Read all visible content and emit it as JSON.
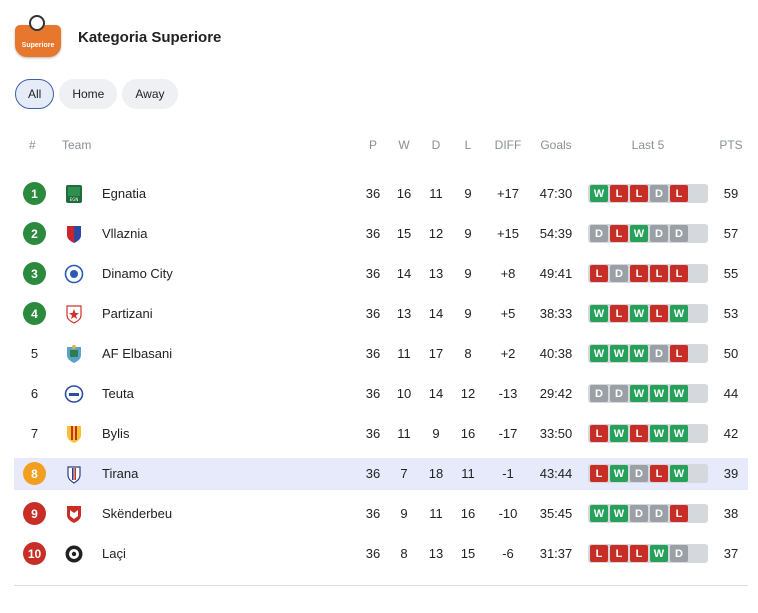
{
  "app": {
    "title": "Kategoria Superiore",
    "logo_text": "Superiore"
  },
  "filters": [
    {
      "label": "All",
      "active": true
    },
    {
      "label": "Home",
      "active": false
    },
    {
      "label": "Away",
      "active": false
    }
  ],
  "columns": {
    "rank": "#",
    "team": "Team",
    "played": "P",
    "won": "W",
    "drawn": "D",
    "lost": "L",
    "diff": "DIFF",
    "goals": "Goals",
    "last5": "Last 5",
    "pts": "PTS"
  },
  "colors": {
    "W": "#27a05a",
    "D": "#9aa0a6",
    "L": "#c62e26",
    "green": "#2b8a3e",
    "orange": "#f29e1f",
    "red": "#c62e26",
    "highlight": "#e6eafb"
  },
  "rows": [
    {
      "rank": "1",
      "rank_style": "green",
      "team": "Egnatia",
      "crest": "egnatia-crest",
      "p": "36",
      "w": "16",
      "d": "11",
      "l": "9",
      "diff": "+17",
      "goals": "47:30",
      "last5": [
        "W",
        "L",
        "L",
        "D",
        "L"
      ],
      "pts": "59"
    },
    {
      "rank": "2",
      "rank_style": "green",
      "team": "Vllaznia",
      "crest": "vllaznia-crest",
      "p": "36",
      "w": "15",
      "d": "12",
      "l": "9",
      "diff": "+15",
      "goals": "54:39",
      "last5": [
        "D",
        "L",
        "W",
        "D",
        "D"
      ],
      "pts": "57"
    },
    {
      "rank": "3",
      "rank_style": "green",
      "team": "Dinamo City",
      "crest": "dinamo-city-crest",
      "p": "36",
      "w": "14",
      "d": "13",
      "l": "9",
      "diff": "+8",
      "goals": "49:41",
      "last5": [
        "L",
        "D",
        "L",
        "L",
        "L"
      ],
      "pts": "55"
    },
    {
      "rank": "4",
      "rank_style": "green",
      "team": "Partizani",
      "crest": "partizani-crest",
      "p": "36",
      "w": "13",
      "d": "14",
      "l": "9",
      "diff": "+5",
      "goals": "38:33",
      "last5": [
        "W",
        "L",
        "W",
        "L",
        "W"
      ],
      "pts": "53"
    },
    {
      "rank": "5",
      "rank_style": "plain",
      "team": "AF Elbasani",
      "crest": "af-elbasani-crest",
      "p": "36",
      "w": "11",
      "d": "17",
      "l": "8",
      "diff": "+2",
      "goals": "40:38",
      "last5": [
        "W",
        "W",
        "W",
        "D",
        "L"
      ],
      "pts": "50"
    },
    {
      "rank": "6",
      "rank_style": "plain",
      "team": "Teuta",
      "crest": "teuta-crest",
      "p": "36",
      "w": "10",
      "d": "14",
      "l": "12",
      "diff": "-13",
      "goals": "29:42",
      "last5": [
        "D",
        "D",
        "W",
        "W",
        "W"
      ],
      "pts": "44"
    },
    {
      "rank": "7",
      "rank_style": "plain",
      "team": "Bylis",
      "crest": "bylis-crest",
      "p": "36",
      "w": "11",
      "d": "9",
      "l": "16",
      "diff": "-17",
      "goals": "33:50",
      "last5": [
        "L",
        "W",
        "L",
        "W",
        "W"
      ],
      "pts": "42"
    },
    {
      "rank": "8",
      "rank_style": "orange",
      "team": "Tirana",
      "crest": "tirana-crest",
      "p": "36",
      "w": "7",
      "d": "18",
      "l": "11",
      "diff": "-1",
      "goals": "43:44",
      "last5": [
        "L",
        "W",
        "D",
        "L",
        "W"
      ],
      "pts": "39",
      "highlight": true
    },
    {
      "rank": "9",
      "rank_style": "red",
      "team": "Skënderbeu",
      "crest": "skenderbeu-crest",
      "p": "36",
      "w": "9",
      "d": "11",
      "l": "16",
      "diff": "-10",
      "goals": "35:45",
      "last5": [
        "W",
        "W",
        "D",
        "D",
        "L"
      ],
      "pts": "38"
    },
    {
      "rank": "10",
      "rank_style": "red",
      "team": "Laçi",
      "crest": "laci-crest",
      "p": "36",
      "w": "8",
      "d": "13",
      "l": "15",
      "diff": "-6",
      "goals": "31:37",
      "last5": [
        "L",
        "L",
        "L",
        "W",
        "D"
      ],
      "pts": "37"
    }
  ]
}
